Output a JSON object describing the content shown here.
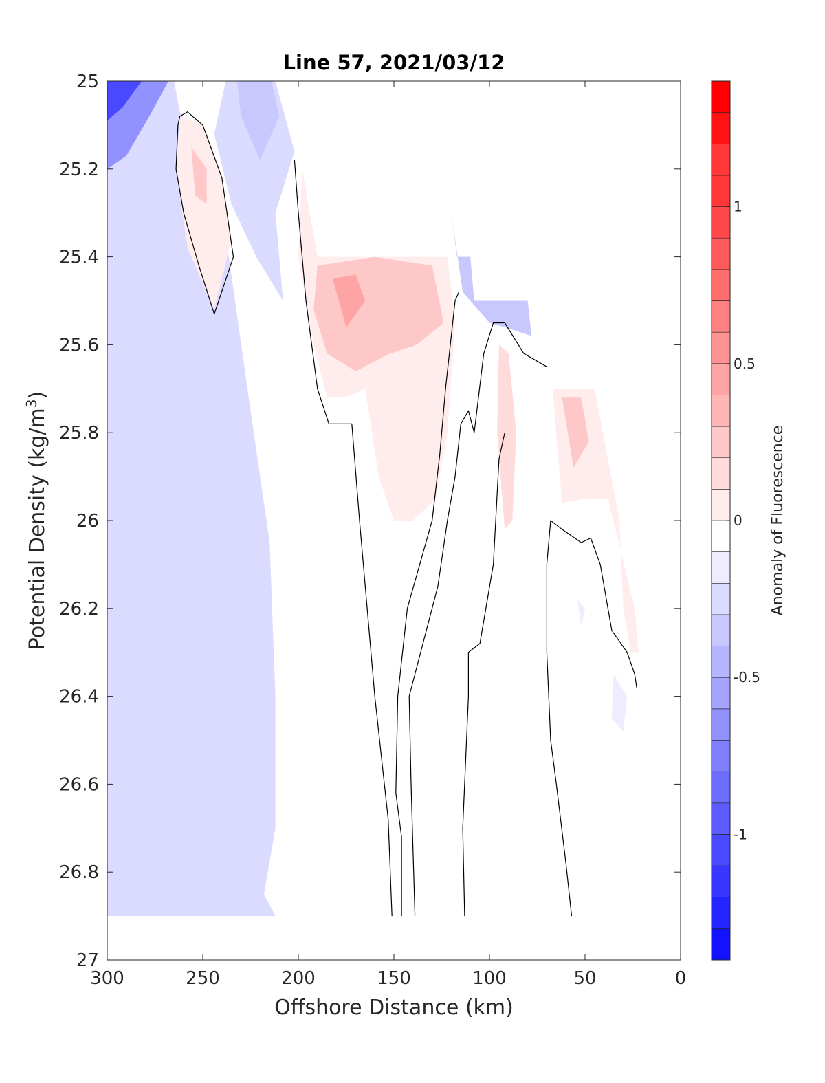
{
  "chart_data": {
    "type": "contour",
    "title": "Line 57, 2021/03/12",
    "xlabel": "Offshore Distance (km)",
    "ylabel": "Potential Density (kg/m",
    "ylabel_sup": "3",
    "ylabel_close": ")",
    "x_reversed": true,
    "y_reversed": true,
    "xlim": [
      300,
      0
    ],
    "ylim": [
      25,
      27
    ],
    "x_ticks": [
      300,
      250,
      200,
      150,
      100,
      50,
      0
    ],
    "x_tick_labels": [
      "300",
      "250",
      "200",
      "150",
      "100",
      "50",
      "0"
    ],
    "y_ticks": [
      25,
      25.2,
      25.4,
      25.6,
      25.8,
      26,
      26.2,
      26.4,
      26.6,
      26.8,
      27
    ],
    "y_tick_labels": [
      "25",
      "25.2",
      "25.4",
      "25.6",
      "25.8",
      "26",
      "26.2",
      "26.4",
      "26.6",
      "26.8",
      "27"
    ],
    "colorbar": {
      "label": "Anomaly of Fluorescence",
      "range": [
        -1.4,
        1.4
      ],
      "step": 0.1,
      "ticks": [
        1,
        0.5,
        0,
        -0.5,
        -1
      ],
      "tick_labels": [
        "1",
        "0.5",
        "0",
        "-0.5",
        "-1"
      ],
      "colormap": "blue-white-red",
      "color_min": "#0000ff",
      "color_max": "#ff0000"
    },
    "regions": [
      {
        "name": "offshore negative band",
        "level": -0.2,
        "points": [
          [
            300,
            25
          ],
          [
            265,
            25
          ],
          [
            262,
            25.07
          ],
          [
            252,
            25.15
          ],
          [
            238,
            25.35
          ],
          [
            225,
            25.75
          ],
          [
            215,
            26.05
          ],
          [
            212,
            26.4
          ],
          [
            212,
            26.7
          ],
          [
            218,
            26.85
          ],
          [
            212,
            26.9
          ],
          [
            300,
            26.9
          ]
        ]
      },
      {
        "name": "offshore negative core",
        "level": -0.6,
        "points": [
          [
            300,
            25
          ],
          [
            268,
            25
          ],
          [
            278,
            25.08
          ],
          [
            290,
            25.17
          ],
          [
            300,
            25.2
          ]
        ]
      },
      {
        "name": "offshore negative peak",
        "level": -1.0,
        "points": [
          [
            300,
            25
          ],
          [
            282,
            25
          ],
          [
            292,
            25.06
          ],
          [
            300,
            25.09
          ]
        ]
      },
      {
        "name": "negative plume 220-200",
        "level": -0.2,
        "points": [
          [
            238,
            25
          ],
          [
            212,
            25
          ],
          [
            202,
            25.16
          ],
          [
            212,
            25.3
          ],
          [
            208,
            25.5
          ],
          [
            222,
            25.4
          ],
          [
            235,
            25.28
          ],
          [
            244,
            25.12
          ]
        ]
      },
      {
        "name": "negative plume core",
        "level": -0.35,
        "points": [
          [
            232,
            25
          ],
          [
            214,
            25
          ],
          [
            210,
            25.08
          ],
          [
            220,
            25.18
          ],
          [
            230,
            25.08
          ]
        ]
      },
      {
        "name": "positive lens 250",
        "level": 0.15,
        "points": [
          [
            262,
            25.08
          ],
          [
            250,
            25.1
          ],
          [
            240,
            25.22
          ],
          [
            235,
            25.36
          ],
          [
            244,
            25.52
          ],
          [
            258,
            25.38
          ],
          [
            264,
            25.2
          ]
        ]
      },
      {
        "name": "positive lens core",
        "level": 0.25,
        "points": [
          [
            256,
            25.15
          ],
          [
            248,
            25.2
          ],
          [
            248,
            25.28
          ],
          [
            254,
            25.26
          ]
        ]
      },
      {
        "name": "positive shelf 200-120",
        "level": 0.15,
        "points": [
          [
            198,
            25.2
          ],
          [
            190,
            25.4
          ],
          [
            122,
            25.4
          ],
          [
            118,
            25.55
          ],
          [
            122,
            25.8
          ],
          [
            128,
            25.95
          ],
          [
            140,
            26.0
          ],
          [
            150,
            26.0
          ],
          [
            158,
            25.9
          ],
          [
            165,
            25.7
          ],
          [
            175,
            25.72
          ],
          [
            185,
            25.72
          ],
          [
            192,
            25.6
          ],
          [
            200,
            25.4
          ]
        ]
      },
      {
        "name": "positive shelf core",
        "level": 0.35,
        "points": [
          [
            190,
            25.42
          ],
          [
            160,
            25.4
          ],
          [
            130,
            25.42
          ],
          [
            124,
            25.55
          ],
          [
            138,
            25.6
          ],
          [
            152,
            25.62
          ],
          [
            170,
            25.66
          ],
          [
            185,
            25.62
          ],
          [
            192,
            25.52
          ]
        ]
      },
      {
        "name": "positive shelf peak",
        "level": 0.45,
        "points": [
          [
            182,
            25.45
          ],
          [
            170,
            25.44
          ],
          [
            165,
            25.5
          ],
          [
            175,
            25.56
          ]
        ]
      },
      {
        "name": "negative wedge 120-80",
        "level": -0.3,
        "points": [
          [
            120,
            25.3
          ],
          [
            117,
            25.4
          ],
          [
            110,
            25.4
          ],
          [
            108,
            25.5
          ],
          [
            80,
            25.5
          ],
          [
            78,
            25.58
          ],
          [
            92,
            25.56
          ],
          [
            100,
            25.55
          ],
          [
            114,
            25.48
          ]
        ]
      },
      {
        "name": "positive tongue 95-85",
        "level": 0.2,
        "points": [
          [
            95,
            25.6
          ],
          [
            90,
            25.62
          ],
          [
            86,
            25.8
          ],
          [
            88,
            26.0
          ],
          [
            92,
            26.02
          ],
          [
            96,
            25.8
          ]
        ]
      },
      {
        "name": "positive tongue 65-25",
        "level": 0.15,
        "points": [
          [
            67,
            25.7
          ],
          [
            45,
            25.7
          ],
          [
            32,
            26.0
          ],
          [
            30,
            26.2
          ],
          [
            26,
            26.3
          ],
          [
            22,
            26.3
          ],
          [
            24,
            26.2
          ],
          [
            38,
            25.95
          ],
          [
            50,
            25.95
          ],
          [
            62,
            25.96
          ]
        ]
      },
      {
        "name": "positive tongue core",
        "level": 0.35,
        "points": [
          [
            62,
            25.72
          ],
          [
            52,
            25.72
          ],
          [
            48,
            25.82
          ],
          [
            56,
            25.88
          ]
        ]
      },
      {
        "name": "negative spot 26.2",
        "level": -0.15,
        "points": [
          [
            54,
            26.18
          ],
          [
            50,
            26.2
          ],
          [
            52,
            26.24
          ]
        ]
      },
      {
        "name": "negative spot 26.4",
        "level": -0.15,
        "points": [
          [
            35,
            26.35
          ],
          [
            28,
            26.4
          ],
          [
            30,
            26.48
          ],
          [
            36,
            26.45
          ]
        ]
      }
    ],
    "zero_contours": [
      [
        [
          262,
          25.08
        ],
        [
          258,
          25.07
        ],
        [
          250,
          25.1
        ],
        [
          240,
          25.22
        ],
        [
          234,
          25.4
        ],
        [
          244,
          25.53
        ],
        [
          252,
          25.42
        ],
        [
          260,
          25.3
        ],
        [
          264,
          25.2
        ],
        [
          263,
          25.1
        ],
        [
          262,
          25.08
        ]
      ],
      [
        [
          202,
          25.18
        ],
        [
          200,
          25.3
        ],
        [
          196,
          25.5
        ],
        [
          190,
          25.7
        ],
        [
          184,
          25.78
        ],
        [
          172,
          25.78
        ],
        [
          168,
          26.0
        ],
        [
          164,
          26.2
        ],
        [
          160,
          26.4
        ],
        [
          153,
          26.68
        ],
        [
          151,
          26.9
        ]
      ],
      [
        [
          146,
          26.9
        ],
        [
          146,
          26.72
        ],
        [
          149,
          26.62
        ],
        [
          148,
          26.4
        ],
        [
          143,
          26.2
        ],
        [
          130,
          26.0
        ],
        [
          126,
          25.85
        ],
        [
          123,
          25.7
        ],
        [
          118,
          25.5
        ],
        [
          116,
          25.48
        ]
      ],
      [
        [
          139,
          26.9
        ],
        [
          141,
          26.6
        ],
        [
          142,
          26.4
        ],
        [
          127,
          26.15
        ],
        [
          122,
          26.0
        ],
        [
          118,
          25.9
        ],
        [
          115,
          25.78
        ],
        [
          111,
          25.75
        ],
        [
          108,
          25.8
        ],
        [
          103,
          25.62
        ],
        [
          98,
          25.55
        ],
        [
          92,
          25.55
        ],
        [
          82,
          25.62
        ],
        [
          70,
          25.65
        ]
      ],
      [
        [
          113,
          26.9
        ],
        [
          114,
          26.7
        ],
        [
          111,
          26.4
        ],
        [
          111,
          26.3
        ],
        [
          105,
          26.28
        ],
        [
          98,
          26.1
        ],
        [
          95,
          25.86
        ],
        [
          92,
          25.8
        ]
      ],
      [
        [
          57,
          26.9
        ],
        [
          60,
          26.78
        ],
        [
          65,
          26.6
        ],
        [
          68,
          26.5
        ],
        [
          70,
          26.3
        ],
        [
          70,
          26.1
        ],
        [
          68,
          26.0
        ],
        [
          62,
          26.02
        ],
        [
          52,
          26.05
        ],
        [
          47,
          26.04
        ],
        [
          42,
          26.1
        ],
        [
          36,
          26.25
        ],
        [
          28,
          26.3
        ],
        [
          24,
          26.35
        ],
        [
          23,
          26.38
        ]
      ]
    ]
  }
}
